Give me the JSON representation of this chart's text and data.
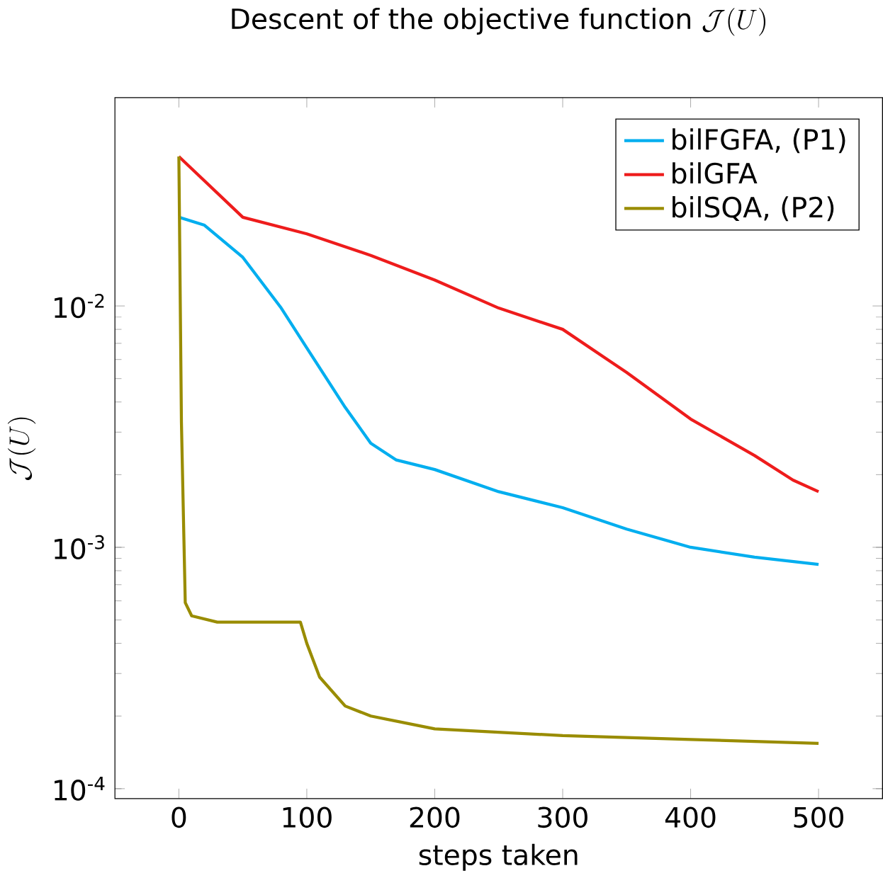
{
  "chart_data": {
    "type": "line",
    "title": "\\text{Descent of the objective function }\\mathcal{J}(U)",
    "xlabel": "steps taken",
    "ylabel": "\\mathcal{J}(U)",
    "log": "y",
    "legend": "top right",
    "grid": false,
    "marker": "none",
    "line_style": "solid",
    "xlim": [
      -50,
      550
    ],
    "xticks": [
      0,
      100,
      200,
      300,
      400,
      500
    ],
    "ylim": [
      9.1e-05,
      0.073
    ],
    "yticks": [
      {
        "value": 0.0001,
        "label": "10$^{-4}$"
      },
      {
        "value": 0.001,
        "label": "10$^{-3}$"
      },
      {
        "value": 0.01,
        "label": "10$^{-2}$"
      }
    ],
    "series": [
      {
        "name": "bilFGFA, (P1)",
        "color": "#00aeef",
        "x": [
          0,
          20,
          50,
          80,
          100,
          130,
          150,
          170,
          200,
          250,
          300,
          350,
          400,
          450,
          500
        ],
        "values": [
          0.0233,
          0.0216,
          0.0159,
          0.0098,
          0.0067,
          0.0038,
          0.0027,
          0.0023,
          0.0021,
          0.0017,
          0.00146,
          0.00119,
          0.001,
          0.00091,
          0.00085
        ]
      },
      {
        "name": "bilGFA",
        "color": "#ee1c1c",
        "x": [
          0,
          50,
          100,
          150,
          200,
          250,
          300,
          350,
          400,
          450,
          480,
          500
        ],
        "values": [
          0.0416,
          0.0233,
          0.0199,
          0.0162,
          0.0128,
          0.0098,
          0.008,
          0.0053,
          0.0034,
          0.0024,
          0.0019,
          0.0017
        ]
      },
      {
        "name": "bilSQA, (P2)",
        "color": "#998c00",
        "x": [
          0,
          2,
          5,
          10,
          30,
          95,
          100,
          110,
          130,
          150,
          200,
          300,
          400,
          500
        ],
        "values": [
          0.0416,
          0.0033,
          0.00059,
          0.00052,
          0.00049,
          0.00049,
          0.0004,
          0.00029,
          0.00022,
          0.0002,
          0.000177,
          0.000166,
          0.00016,
          0.000154
        ]
      }
    ]
  }
}
